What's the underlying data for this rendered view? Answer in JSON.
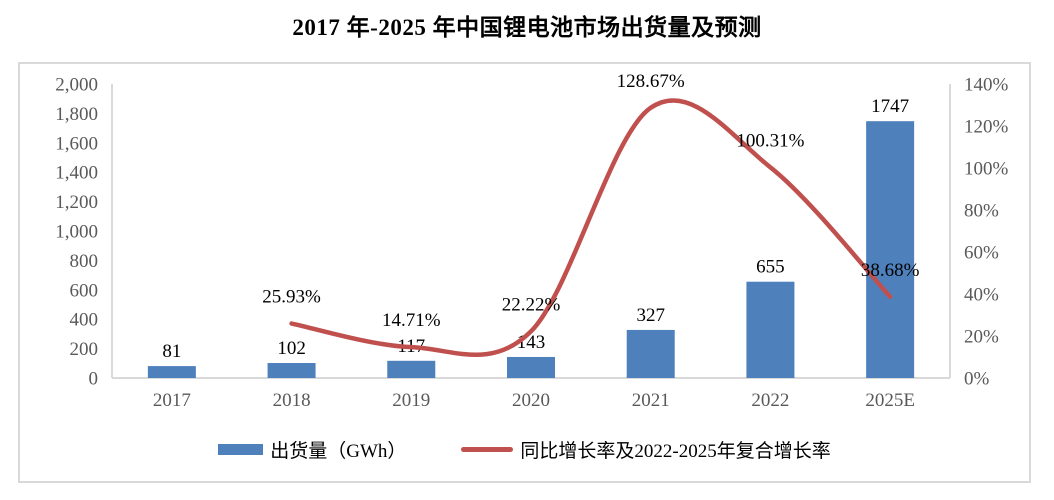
{
  "title": "2017 年-2025 年中国锂电池市场出货量及预测",
  "legend": {
    "items": [
      {
        "label": "出货量（GWh）",
        "marker": "bar-swatch",
        "color": "#4E80BC"
      },
      {
        "label": "同比增长率及2022-2025年复合增长率",
        "marker": "line-swatch",
        "color": "#C0504D"
      }
    ]
  },
  "chart_data": {
    "type": "bar",
    "subtype": "bar+smooth-line combo, dual axis",
    "title": "2017 年-2025 年中国锂电池市场出货量及预测",
    "categories": [
      "2017",
      "2018",
      "2019",
      "2020",
      "2021",
      "2022",
      "2025E"
    ],
    "series": [
      {
        "name": "出货量（GWh）",
        "type": "bar",
        "axis": "left",
        "color": "#4E80BC",
        "values": [
          81,
          102,
          117,
          143,
          327,
          655,
          1747
        ],
        "data_labels": [
          "81",
          "102",
          "117",
          "143",
          "327",
          "655",
          "1747"
        ]
      },
      {
        "name": "同比增长率及2022-2025年复合增长率",
        "type": "line",
        "axis": "right",
        "color": "#C0504D",
        "smooth": true,
        "values": [
          null,
          25.93,
          14.71,
          22.22,
          128.67,
          100.31,
          38.68
        ],
        "data_labels": [
          null,
          "25.93%",
          "14.71%",
          "22.22%",
          "128.67%",
          "100.31%",
          "38.68%"
        ]
      }
    ],
    "left_axis": {
      "min": 0,
      "max": 2000,
      "step": 200,
      "tick_labels": [
        "0",
        "200",
        "400",
        "600",
        "800",
        "1,000",
        "1,200",
        "1,400",
        "1,600",
        "1,800",
        "2,000"
      ]
    },
    "right_axis": {
      "min": 0,
      "max": 140,
      "step": 20,
      "tick_labels": [
        "0%",
        "20%",
        "40%",
        "60%",
        "80%",
        "100%",
        "120%",
        "140%"
      ]
    },
    "grid": false,
    "legend_position": "bottom",
    "colors": {
      "axis_text": "#595959",
      "data_label_text": "#000000",
      "axis_line": "#d9d9d9"
    }
  }
}
